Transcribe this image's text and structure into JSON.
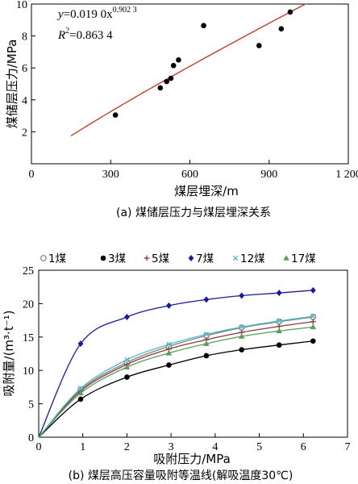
{
  "chart_data": [
    {
      "type": "scatter",
      "xlabel": "煤层埋深/m",
      "ylabel": "煤储层压力/MPa",
      "caption": "(a)  煤储层压力与煤层埋深关系",
      "xlim": [
        0,
        1200
      ],
      "ylim": [
        0,
        10
      ],
      "xticks": [
        {
          "v": 0,
          "label": "0"
        },
        {
          "v": 300,
          "label": "300"
        },
        {
          "v": 600,
          "label": "600"
        },
        {
          "v": 900,
          "label": "900"
        },
        {
          "v": 1200,
          "label": "1 200"
        }
      ],
      "yticks": [
        {
          "v": 2,
          "label": "2"
        },
        {
          "v": 4,
          "label": "4"
        },
        {
          "v": 6,
          "label": "6"
        },
        {
          "v": 8,
          "label": "8"
        },
        {
          "v": 10,
          "label": "10"
        }
      ],
      "series": [
        {
          "marker": "dot",
          "color": "#000000",
          "points": [
            [
              318,
              3.05
            ],
            [
              488,
              4.75
            ],
            [
              512,
              5.15
            ],
            [
              528,
              5.35
            ],
            [
              538,
              6.15
            ],
            [
              557,
              6.5
            ],
            [
              652,
              8.65
            ],
            [
              862,
              7.4
            ],
            [
              946,
              8.45
            ],
            [
              980,
              9.5
            ]
          ]
        }
      ],
      "fit": {
        "color": "#c0402a",
        "coef": 0.019,
        "exp": 0.9023,
        "x_range": [
          150,
          1040
        ]
      },
      "equation": {
        "line1_prefix": "y",
        "line1_mid": "=0.019 0x",
        "line1_sup": "0.902 3",
        "line2_prefix": "R",
        "line2_sup": "2",
        "line2_rest": "=0.863 4"
      }
    },
    {
      "type": "line",
      "xlabel": "吸附压力/MPa",
      "ylabel": "吸附量/(m³·t⁻¹)",
      "caption": "(b)  煤层高压容量吸附等温线(解吸温度30℃)",
      "xlim": [
        0,
        7
      ],
      "ylim": [
        0,
        25
      ],
      "xticks": [
        {
          "v": 0,
          "label": "0"
        },
        {
          "v": 1,
          "label": "1"
        },
        {
          "v": 2,
          "label": "2"
        },
        {
          "v": 3,
          "label": "3"
        },
        {
          "v": 4,
          "label": "4"
        },
        {
          "v": 5,
          "label": "5"
        },
        {
          "v": 6,
          "label": "6"
        },
        {
          "v": 7,
          "label": "7"
        }
      ],
      "yticks": [
        {
          "v": 0,
          "label": "0"
        },
        {
          "v": 5,
          "label": "5"
        },
        {
          "v": 10,
          "label": "10"
        },
        {
          "v": 15,
          "label": "15"
        },
        {
          "v": 20,
          "label": "20"
        },
        {
          "v": 25,
          "label": "25"
        }
      ],
      "x": [
        0.95,
        2.0,
        2.95,
        3.8,
        4.6,
        5.45,
        6.22
      ],
      "series": [
        {
          "name": "1煤",
          "marker": "open-circle",
          "color": "#7f7f7f",
          "values": [
            7.1,
            11.2,
            13.6,
            15.2,
            16.4,
            17.3,
            18.0
          ]
        },
        {
          "name": "3煤",
          "marker": "dot",
          "color": "#000000",
          "values": [
            5.7,
            9.0,
            10.8,
            12.2,
            13.1,
            13.8,
            14.4
          ]
        },
        {
          "name": "5煤",
          "marker": "plus",
          "color": "#8b3a3a",
          "values": [
            6.9,
            10.9,
            13.2,
            14.6,
            15.7,
            16.6,
            17.3
          ]
        },
        {
          "name": "7煤",
          "marker": "diamond",
          "color": "#1a1a9c",
          "values": [
            14.0,
            18.0,
            19.7,
            20.6,
            21.2,
            21.6,
            22.0
          ]
        },
        {
          "name": "12煤",
          "marker": "x",
          "color": "#4fb8c8",
          "values": [
            7.3,
            11.6,
            13.9,
            15.4,
            16.5,
            17.4,
            18.1
          ]
        },
        {
          "name": "17煤",
          "marker": "triangle",
          "color": "#5a9c5a",
          "values": [
            6.6,
            10.5,
            12.6,
            14.0,
            15.1,
            15.9,
            16.5
          ]
        }
      ]
    }
  ]
}
